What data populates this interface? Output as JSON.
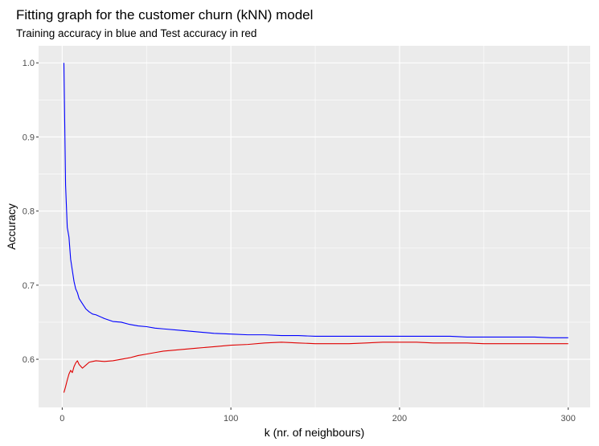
{
  "chart_data": {
    "type": "line",
    "title": "Fitting graph for the customer churn (kNN) model",
    "subtitle": "Training accuracy in blue and Test accuracy in red",
    "xlabel": "k (nr. of neighbours)",
    "ylabel": "Accuracy",
    "xlim": [
      -14,
      313
    ],
    "ylim": [
      0.535,
      1.023
    ],
    "x_ticks": [
      0,
      100,
      200,
      300
    ],
    "x_tick_labels": [
      "0",
      "100",
      "200",
      "300"
    ],
    "y_ticks": [
      0.6,
      0.7,
      0.8,
      0.9,
      1.0
    ],
    "y_tick_labels": [
      "0.6",
      "0.7",
      "0.8",
      "0.9",
      "1.0"
    ],
    "grid": true,
    "background": "#ebebeb",
    "series": [
      {
        "color": "#0000ff",
        "x": [
          1,
          2,
          3,
          4,
          5,
          6,
          7,
          8,
          9,
          10,
          12,
          14,
          16,
          18,
          20,
          25,
          30,
          35,
          40,
          45,
          50,
          55,
          60,
          70,
          80,
          90,
          100,
          110,
          120,
          130,
          140,
          150,
          160,
          170,
          180,
          190,
          200,
          210,
          220,
          230,
          240,
          250,
          260,
          270,
          280,
          290,
          300
        ],
        "y": [
          1.0,
          0.835,
          0.778,
          0.765,
          0.735,
          0.72,
          0.705,
          0.695,
          0.69,
          0.682,
          0.675,
          0.668,
          0.664,
          0.661,
          0.66,
          0.655,
          0.651,
          0.65,
          0.647,
          0.645,
          0.644,
          0.642,
          0.641,
          0.639,
          0.637,
          0.635,
          0.634,
          0.633,
          0.633,
          0.632,
          0.632,
          0.631,
          0.631,
          0.631,
          0.631,
          0.631,
          0.631,
          0.631,
          0.631,
          0.631,
          0.63,
          0.63,
          0.63,
          0.63,
          0.63,
          0.629,
          0.629
        ]
      },
      {
        "color": "#e00000",
        "x": [
          1,
          2,
          3,
          4,
          5,
          6,
          7,
          8,
          9,
          10,
          12,
          14,
          16,
          18,
          20,
          25,
          30,
          35,
          40,
          45,
          50,
          55,
          60,
          70,
          80,
          90,
          100,
          110,
          120,
          130,
          140,
          150,
          160,
          170,
          180,
          190,
          200,
          210,
          220,
          230,
          240,
          250,
          260,
          270,
          280,
          290,
          300
        ],
        "y": [
          0.555,
          0.563,
          0.572,
          0.58,
          0.585,
          0.582,
          0.59,
          0.595,
          0.598,
          0.593,
          0.588,
          0.592,
          0.596,
          0.597,
          0.598,
          0.597,
          0.598,
          0.6,
          0.602,
          0.605,
          0.607,
          0.609,
          0.611,
          0.613,
          0.615,
          0.617,
          0.619,
          0.62,
          0.622,
          0.623,
          0.622,
          0.621,
          0.621,
          0.621,
          0.622,
          0.623,
          0.623,
          0.623,
          0.622,
          0.622,
          0.622,
          0.621,
          0.621,
          0.621,
          0.621,
          0.621,
          0.621
        ]
      }
    ]
  }
}
